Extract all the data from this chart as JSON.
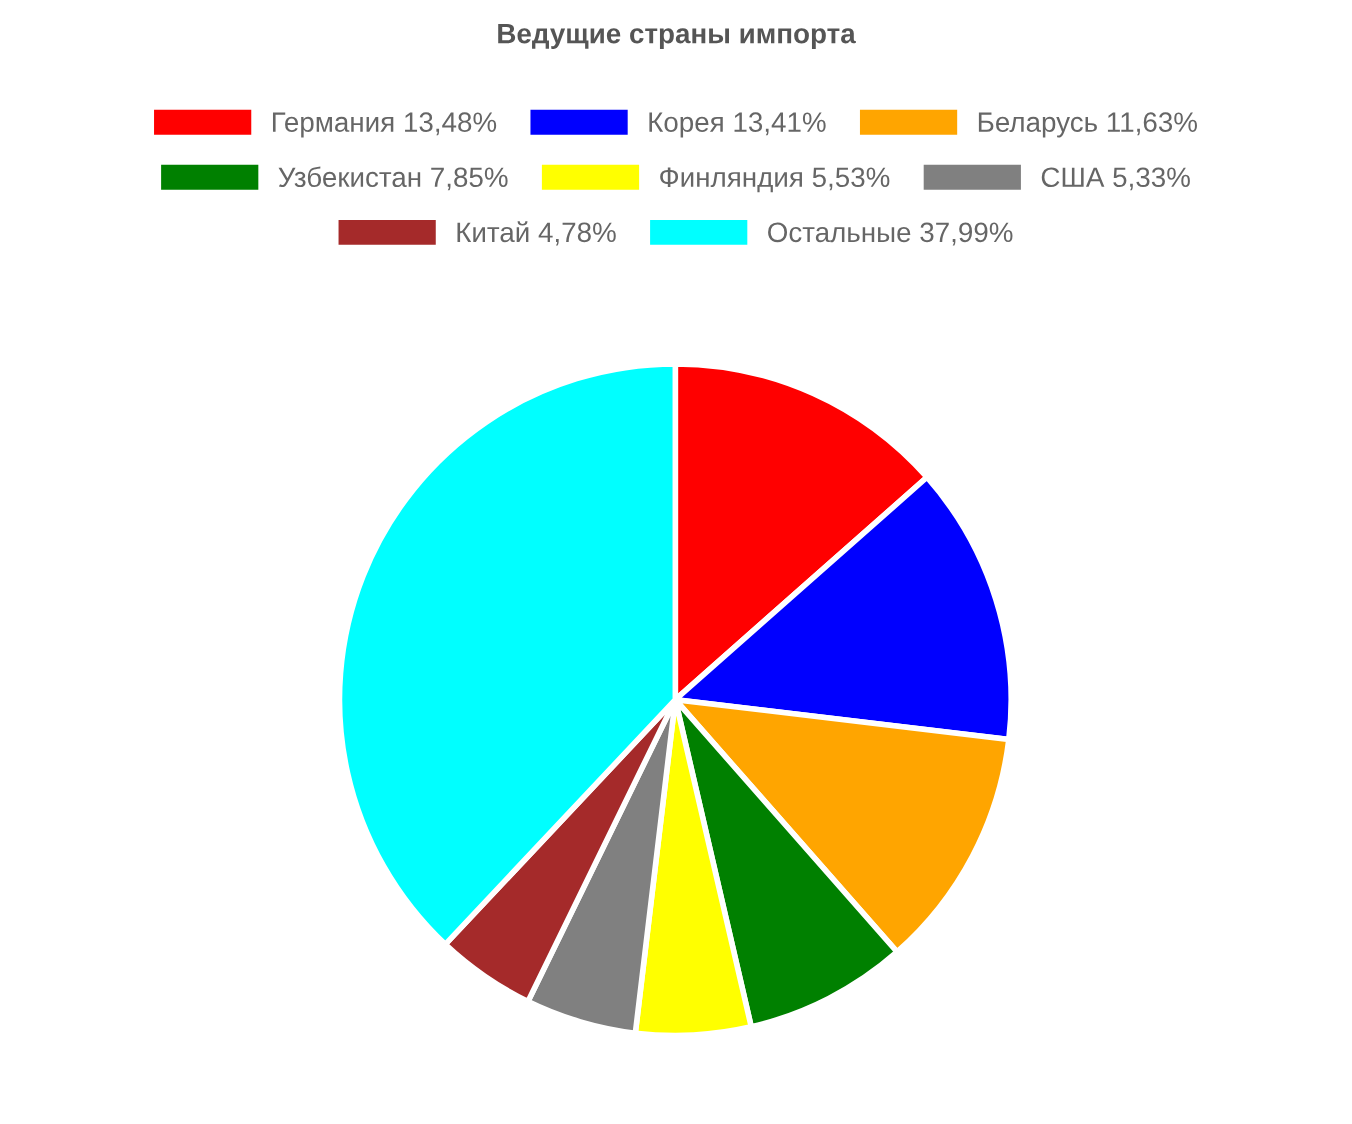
{
  "chart_data": {
    "type": "pie",
    "title": "Ведущие страны импорта",
    "categories": [
      "Германия 13,48%",
      "Корея 13,41%",
      "Беларусь 11,63%",
      "Узбекистан 7,85%",
      "Финляндия 5,53%",
      "США 5,33%",
      "Китай 4,78%",
      "Остальные 37,99%"
    ],
    "values": [
      13.48,
      13.41,
      11.63,
      7.85,
      5.53,
      5.33,
      4.78,
      37.99
    ],
    "colors": [
      "#ff0000",
      "#0000ff",
      "#ffa500",
      "#008000",
      "#ffff00",
      "#808080",
      "#a52a2a",
      "#00ffff"
    ],
    "legend": "top"
  }
}
